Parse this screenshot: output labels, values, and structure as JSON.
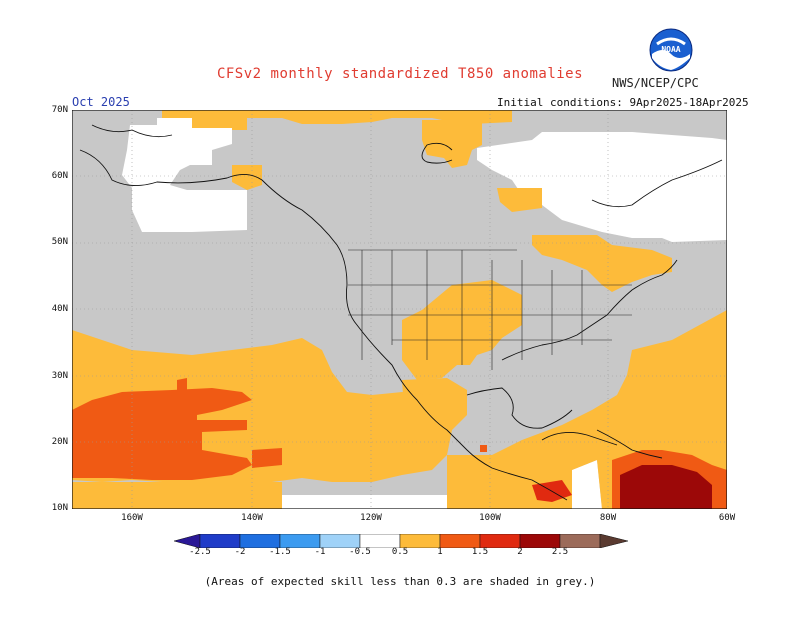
{
  "title": "CFSv2 monthly standardized T850 anomalies",
  "agency": "NWS/NCEP/CPC",
  "month": "Oct 2025",
  "initial_conditions": "Initial conditions: 9Apr2025-18Apr2025",
  "footnote": "(Areas of expected skill less than 0.3 are shaded in grey.)",
  "logo": {
    "text": "NOAA",
    "icon": "noaa-logo-icon"
  },
  "map": {
    "lat_labels": [
      "70N",
      "60N",
      "50N",
      "40N",
      "30N",
      "20N",
      "10N"
    ],
    "lon_labels": [
      "160W",
      "140W",
      "120W",
      "100W",
      "80W",
      "60W"
    ]
  },
  "colorbar": {
    "labels": [
      "-2.5",
      "-2",
      "-1.5",
      "-1",
      "-0.5",
      "0.5",
      "1",
      "1.5",
      "2",
      "2.5"
    ],
    "colors": {
      "lt_m2_5": "#2a1896",
      "m2_5_m2": "#1f3cc8",
      "m2_m1_5": "#1f6fe0",
      "m1_5_m1": "#3c9bf0",
      "m1_m0_5": "#9fd2f8",
      "m0_5_0_5": "#ffffff",
      "p0_5_1": "#fdbb3a",
      "p1_1_5": "#f05a14",
      "p1_5_2": "#e02a10",
      "p2_2_5": "#9c0808",
      "gt_2_5": "#9c6b5a"
    }
  },
  "colors": {
    "grey_low_skill": "#c8c8c8",
    "title": "#e03c31",
    "month": "#2a3fb0"
  }
}
